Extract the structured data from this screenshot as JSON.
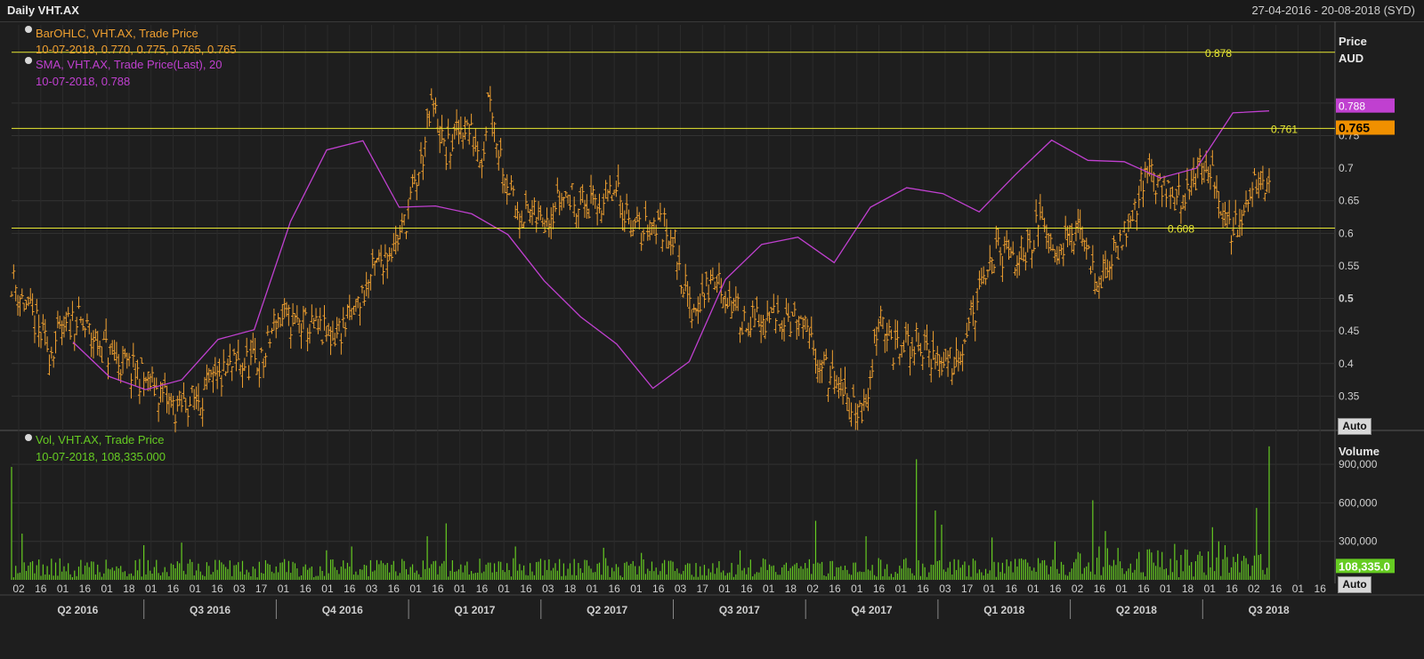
{
  "header": {
    "title": "Daily VHT.AX",
    "date_range": "27-04-2016 - 20-08-2018 (SYD)"
  },
  "legend": {
    "price_series": "BarOHLC, VHT.AX, Trade Price",
    "price_values": "10-07-2018, 0.770, 0.775, 0.765, 0.765",
    "sma_series": "SMA, VHT.AX, Trade Price(Last),  20",
    "sma_values": "10-07-2018, 0.788",
    "vol_series": "Vol, VHT.AX, Trade Price",
    "vol_values": "10-07-2018, 108,335.000"
  },
  "axes": {
    "price_header_line1": "Price",
    "price_header_line2": "AUD",
    "volume_header": "Volume",
    "auto_label": "Auto"
  },
  "colors": {
    "background": "#1e1e1e",
    "ohlc": "#f0a030",
    "sma": "#c040d0",
    "volume": "#66cc22",
    "hline": "#e8e832",
    "grid": "#333333"
  },
  "chart_data": [
    {
      "type": "ohlc",
      "series": [
        {
          "name": "BarOHLC, VHT.AX, Trade Price",
          "anchors": [
            [
              0,
              0.53
            ],
            [
              0.03,
              0.42
            ],
            [
              0.05,
              0.47
            ],
            [
              0.08,
              0.41
            ],
            [
              0.11,
              0.37
            ],
            [
              0.13,
              0.33
            ],
            [
              0.15,
              0.35
            ],
            [
              0.18,
              0.4
            ],
            [
              0.2,
              0.4
            ],
            [
              0.21,
              0.47
            ],
            [
              0.23,
              0.46
            ],
            [
              0.255,
              0.44
            ],
            [
              0.27,
              0.47
            ],
            [
              0.29,
              0.55
            ],
            [
              0.31,
              0.6
            ],
            [
              0.325,
              0.7
            ],
            [
              0.335,
              0.8
            ],
            [
              0.345,
              0.72
            ],
            [
              0.36,
              0.77
            ],
            [
              0.375,
              0.72
            ],
            [
              0.38,
              0.83
            ],
            [
              0.385,
              0.75
            ],
            [
              0.4,
              0.64
            ],
            [
              0.42,
              0.62
            ],
            [
              0.44,
              0.66
            ],
            [
              0.46,
              0.64
            ],
            [
              0.48,
              0.66
            ],
            [
              0.5,
              0.6
            ],
            [
              0.51,
              0.62
            ],
            [
              0.525,
              0.6
            ],
            [
              0.54,
              0.48
            ],
            [
              0.56,
              0.53
            ],
            [
              0.58,
              0.47
            ],
            [
              0.6,
              0.46
            ],
            [
              0.615,
              0.48
            ],
            [
              0.63,
              0.45
            ],
            [
              0.65,
              0.38
            ],
            [
              0.67,
              0.33
            ],
            [
              0.68,
              0.33
            ],
            [
              0.69,
              0.49
            ],
            [
              0.7,
              0.42
            ],
            [
              0.72,
              0.43
            ],
            [
              0.74,
              0.4
            ],
            [
              0.75,
              0.41
            ],
            [
              0.77,
              0.5
            ],
            [
              0.78,
              0.57
            ],
            [
              0.8,
              0.56
            ],
            [
              0.82,
              0.62
            ],
            [
              0.83,
              0.58
            ],
            [
              0.85,
              0.6
            ],
            [
              0.865,
              0.52
            ],
            [
              0.875,
              0.56
            ],
            [
              0.89,
              0.63
            ],
            [
              0.905,
              0.7
            ],
            [
              0.915,
              0.67
            ],
            [
              0.93,
              0.65
            ],
            [
              0.945,
              0.7
            ],
            [
              0.955,
              0.68
            ],
            [
              0.97,
              0.6
            ],
            [
              0.985,
              0.66
            ],
            [
              1.0,
              0.69
            ]
          ]
        },
        {
          "name": "SMA, VHT.AX, Trade Price(Last),  20",
          "values": [
            0.433,
            0.38,
            0.36,
            0.375,
            0.437,
            0.452,
            0.618,
            0.728,
            0.742,
            0.64,
            0.642,
            0.63,
            0.598,
            0.527,
            0.472,
            0.43,
            0.362,
            0.403,
            0.529,
            0.583,
            0.594,
            0.555,
            0.64,
            0.67,
            0.661,
            0.633,
            0.69,
            0.743,
            0.712,
            0.71,
            0.685,
            0.7,
            0.785,
            0.788
          ]
        }
      ],
      "price_range": [
        0.3,
        0.92
      ],
      "date_range": [
        "27-04-2016",
        "20-08-2018"
      ],
      "y_ticks": [
        0.35,
        0.4,
        0.45,
        0.5,
        0.55,
        0.6,
        0.65,
        0.7,
        0.75,
        0.8
      ],
      "y_tick_labels": [
        "0.35",
        "0.4",
        "0.45",
        "0.5",
        "0.55",
        "0.6",
        "0.65",
        "0.7",
        "0.75",
        "0.8"
      ],
      "horizontal_lines": [
        {
          "value": 0.878,
          "label": "0.878"
        },
        {
          "value": 0.761,
          "label": "0.761"
        },
        {
          "value": 0.608,
          "label": "0.608"
        }
      ],
      "last_price_tags": [
        {
          "label": "0.788",
          "value": 0.788,
          "color": "#c040d0"
        },
        {
          "label": "0.765",
          "value": 0.765,
          "color": "#f09000"
        }
      ],
      "ylabel": "Price AUD",
      "grid": true
    },
    {
      "type": "bar",
      "series": [
        {
          "name": "Vol, VHT.AX, Trade Price",
          "spikes": [
            [
              0.0,
              880000
            ],
            [
              0.008,
              360000
            ],
            [
              0.105,
              270000
            ],
            [
              0.135,
              290000
            ],
            [
              0.25,
              230000
            ],
            [
              0.27,
              260000
            ],
            [
              0.33,
              340000
            ],
            [
              0.345,
              440000
            ],
            [
              0.4,
              260000
            ],
            [
              0.47,
              250000
            ],
            [
              0.5,
              210000
            ],
            [
              0.58,
              230000
            ],
            [
              0.64,
              460000
            ],
            [
              0.68,
              340000
            ],
            [
              0.72,
              940000
            ],
            [
              0.735,
              540000
            ],
            [
              0.74,
              430000
            ],
            [
              0.78,
              330000
            ],
            [
              0.83,
              300000
            ],
            [
              0.86,
              620000
            ],
            [
              0.87,
              380000
            ],
            [
              0.925,
              280000
            ],
            [
              0.955,
              410000
            ],
            [
              0.96,
              300000
            ],
            [
              0.965,
              270000
            ]
          ],
          "late_spikes": [
            [
              0.29,
              560000
            ],
            [
              0.3,
              1040000
            ],
            [
              0.31,
              740000
            ],
            [
              0.325,
              390000
            ],
            [
              0.34,
              560000
            ],
            [
              0.35,
              700000
            ],
            [
              0.36,
              600000
            ],
            [
              0.38,
              380000
            ]
          ]
        }
      ],
      "last_value": {
        "label": "108,335.0",
        "value": 108335
      },
      "y_ticks": [
        300000,
        600000,
        900000
      ],
      "y_tick_labels": [
        "300,000",
        "600,000",
        "900,000"
      ],
      "ylim": [
        0,
        1150000
      ],
      "ylabel": "Volume"
    }
  ],
  "x_axis": {
    "day_labels": [
      "02",
      "16",
      "01",
      "16",
      "01",
      "18",
      "01",
      "16",
      "01",
      "16",
      "03",
      "17",
      "01",
      "16",
      "01",
      "16",
      "03",
      "16",
      "01",
      "16",
      "01",
      "16",
      "01",
      "16",
      "03",
      "18",
      "01",
      "16",
      "01",
      "16",
      "03",
      "17",
      "01",
      "16",
      "01",
      "18",
      "02",
      "16",
      "01",
      "16",
      "01",
      "16",
      "03",
      "17",
      "01",
      "16",
      "01",
      "16",
      "02",
      "16",
      "01",
      "16",
      "01",
      "18",
      "01",
      "16",
      "02",
      "16",
      "01",
      "16"
    ],
    "quarter_labels": [
      "Q2 2016",
      "Q3 2016",
      "Q4 2016",
      "Q1 2017",
      "Q2 2017",
      "Q3 2017",
      "Q4 2017",
      "Q1 2018",
      "Q2 2018",
      "Q3 2018"
    ]
  }
}
